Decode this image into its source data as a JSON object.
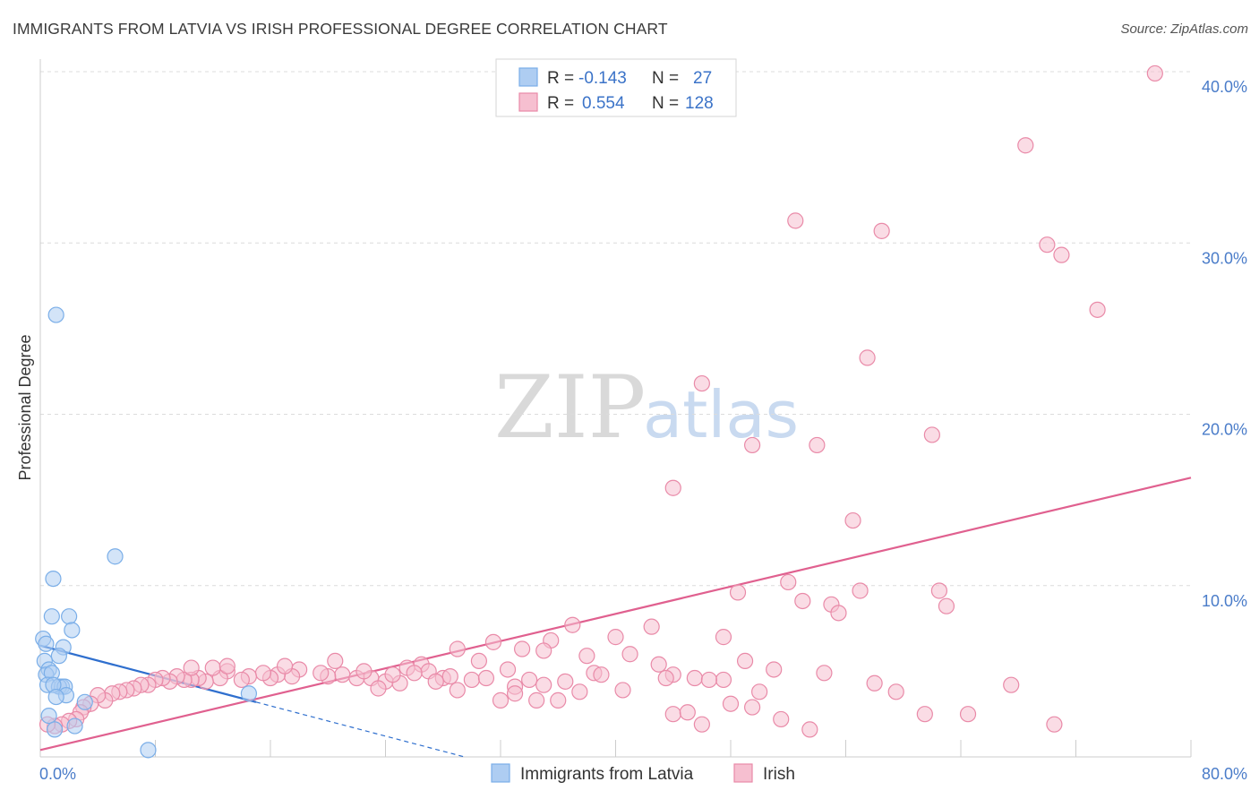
{
  "header": {
    "title": "IMMIGRANTS FROM LATVIA VS IRISH PROFESSIONAL DEGREE CORRELATION CHART",
    "source": "Source: ZipAtlas.com"
  },
  "watermark": {
    "zip": "ZIP",
    "atlas": "atlas"
  },
  "chart_data": {
    "type": "scatter",
    "title": "IMMIGRANTS FROM LATVIA VS IRISH PROFESSIONAL DEGREE CORRELATION CHART",
    "xlabel": "",
    "ylabel": "Professional Degree",
    "xlim": [
      0,
      80
    ],
    "ylim": [
      0,
      40
    ],
    "x_tick_labels": [
      "0.0%",
      "80.0%"
    ],
    "y_ticks": [
      10,
      20,
      30,
      40
    ],
    "y_tick_labels": [
      "10.0%",
      "20.0%",
      "30.0%",
      "40.0%"
    ],
    "grid": true,
    "legend": {
      "position": "top-center",
      "entries": [
        {
          "series": "Immigrants from Latvia",
          "r_label": "R =",
          "r_value": "-0.143",
          "n_label": "N =",
          "n_value": "27"
        },
        {
          "series": "Irish",
          "r_label": "R =",
          "r_value": "0.554",
          "n_label": "N =",
          "n_value": "128"
        }
      ]
    },
    "series": [
      {
        "name": "Immigrants from Latvia",
        "color": "#7aaee8",
        "fill": "#aecdf2",
        "trend_color": "#2f6fce",
        "trend": {
          "x0": 0,
          "y0": 6.5,
          "x1": 15,
          "y1": 3.2,
          "dashed_to_x": 29.5,
          "dashed_to_y": 0
        },
        "points": [
          [
            1.1,
            25.8
          ],
          [
            0.9,
            10.4
          ],
          [
            5.2,
            11.7
          ],
          [
            0.8,
            8.2
          ],
          [
            2.0,
            8.2
          ],
          [
            2.2,
            7.4
          ],
          [
            0.2,
            6.9
          ],
          [
            0.4,
            6.6
          ],
          [
            1.6,
            6.4
          ],
          [
            1.3,
            5.9
          ],
          [
            0.3,
            5.6
          ],
          [
            0.6,
            5.1
          ],
          [
            0.4,
            4.8
          ],
          [
            0.8,
            4.9
          ],
          [
            0.5,
            4.2
          ],
          [
            1.5,
            4.1
          ],
          [
            1.3,
            4.1
          ],
          [
            1.7,
            4.1
          ],
          [
            0.9,
            4.2
          ],
          [
            1.8,
            3.6
          ],
          [
            1.1,
            3.5
          ],
          [
            3.1,
            3.2
          ],
          [
            14.5,
            3.7
          ],
          [
            0.6,
            2.4
          ],
          [
            2.4,
            1.8
          ],
          [
            1.0,
            1.6
          ],
          [
            7.5,
            0.4
          ]
        ]
      },
      {
        "name": "Irish",
        "color": "#e98aa8",
        "fill": "#f6bfd0",
        "trend_color": "#e0608f",
        "trend": {
          "x0": 0,
          "y0": 0.4,
          "x1": 80,
          "y1": 16.3
        },
        "points": [
          [
            77.5,
            39.9
          ],
          [
            68.5,
            35.7
          ],
          [
            52.5,
            31.3
          ],
          [
            58.5,
            30.7
          ],
          [
            70.0,
            29.9
          ],
          [
            71.0,
            29.3
          ],
          [
            73.5,
            26.1
          ],
          [
            57.5,
            23.3
          ],
          [
            46.0,
            21.8
          ],
          [
            49.5,
            18.2
          ],
          [
            54.0,
            18.2
          ],
          [
            62.0,
            18.8
          ],
          [
            44.0,
            15.7
          ],
          [
            56.5,
            13.8
          ],
          [
            52.0,
            10.2
          ],
          [
            48.5,
            9.6
          ],
          [
            57.0,
            9.7
          ],
          [
            62.5,
            9.7
          ],
          [
            53.0,
            9.1
          ],
          [
            55.0,
            8.9
          ],
          [
            63.0,
            8.8
          ],
          [
            55.5,
            8.4
          ],
          [
            37.0,
            7.7
          ],
          [
            42.5,
            7.6
          ],
          [
            40.0,
            7.0
          ],
          [
            47.5,
            7.0
          ],
          [
            35.5,
            6.8
          ],
          [
            31.5,
            6.7
          ],
          [
            33.5,
            6.3
          ],
          [
            29.0,
            6.3
          ],
          [
            35.0,
            6.2
          ],
          [
            41.0,
            6.0
          ],
          [
            38.0,
            5.9
          ],
          [
            43.0,
            5.4
          ],
          [
            49.0,
            5.6
          ],
          [
            30.5,
            5.6
          ],
          [
            26.5,
            5.4
          ],
          [
            32.5,
            5.1
          ],
          [
            25.5,
            5.2
          ],
          [
            27.0,
            5.0
          ],
          [
            38.5,
            4.9
          ],
          [
            39.0,
            4.8
          ],
          [
            44.0,
            4.8
          ],
          [
            51.0,
            5.1
          ],
          [
            54.5,
            4.9
          ],
          [
            28.0,
            4.6
          ],
          [
            30.0,
            4.5
          ],
          [
            34.0,
            4.5
          ],
          [
            36.5,
            4.4
          ],
          [
            45.5,
            4.6
          ],
          [
            47.5,
            4.5
          ],
          [
            58.0,
            4.3
          ],
          [
            67.5,
            4.2
          ],
          [
            23.0,
            4.6
          ],
          [
            24.0,
            4.4
          ],
          [
            25.0,
            4.3
          ],
          [
            21.0,
            4.8
          ],
          [
            22.0,
            4.6
          ],
          [
            20.0,
            4.7
          ],
          [
            19.5,
            4.9
          ],
          [
            18.0,
            5.1
          ],
          [
            17.5,
            4.7
          ],
          [
            16.5,
            4.8
          ],
          [
            16.0,
            4.6
          ],
          [
            15.5,
            4.9
          ],
          [
            14.5,
            4.7
          ],
          [
            14.0,
            4.5
          ],
          [
            13.0,
            5.0
          ],
          [
            12.5,
            4.6
          ],
          [
            12.0,
            5.2
          ],
          [
            11.5,
            4.4
          ],
          [
            11.0,
            4.6
          ],
          [
            10.5,
            4.5
          ],
          [
            10.0,
            4.5
          ],
          [
            9.5,
            4.7
          ],
          [
            9.0,
            4.4
          ],
          [
            8.5,
            4.6
          ],
          [
            8.0,
            4.5
          ],
          [
            7.5,
            4.2
          ],
          [
            7.0,
            4.2
          ],
          [
            6.5,
            4.0
          ],
          [
            6.0,
            3.9
          ],
          [
            5.5,
            3.8
          ],
          [
            5.0,
            3.7
          ],
          [
            4.5,
            3.3
          ],
          [
            4.0,
            3.6
          ],
          [
            3.5,
            3.1
          ],
          [
            3.0,
            2.9
          ],
          [
            2.8,
            2.6
          ],
          [
            2.5,
            2.2
          ],
          [
            2.0,
            2.1
          ],
          [
            1.5,
            1.9
          ],
          [
            1.0,
            1.8
          ],
          [
            0.5,
            1.9
          ],
          [
            10.5,
            5.2
          ],
          [
            13.0,
            5.3
          ],
          [
            17.0,
            5.3
          ],
          [
            20.5,
            5.6
          ],
          [
            22.5,
            5.0
          ],
          [
            24.5,
            4.8
          ],
          [
            26.0,
            4.9
          ],
          [
            28.5,
            4.7
          ],
          [
            31.0,
            4.6
          ],
          [
            33.0,
            4.1
          ],
          [
            37.5,
            3.8
          ],
          [
            40.5,
            3.9
          ],
          [
            43.5,
            4.6
          ],
          [
            46.5,
            4.5
          ],
          [
            50.0,
            3.8
          ],
          [
            59.5,
            3.8
          ],
          [
            35.0,
            4.2
          ],
          [
            29.0,
            3.9
          ],
          [
            32.0,
            3.3
          ],
          [
            33.0,
            3.7
          ],
          [
            34.5,
            3.3
          ],
          [
            36.0,
            3.3
          ],
          [
            44.0,
            2.5
          ],
          [
            45.0,
            2.6
          ],
          [
            46.0,
            1.9
          ],
          [
            48.0,
            3.1
          ],
          [
            49.5,
            2.9
          ],
          [
            51.5,
            2.2
          ],
          [
            53.5,
            1.6
          ],
          [
            61.5,
            2.5
          ],
          [
            64.5,
            2.5
          ],
          [
            70.5,
            1.9
          ],
          [
            23.5,
            4.0
          ],
          [
            27.5,
            4.4
          ]
        ]
      }
    ]
  },
  "bottom_legend": {
    "items": [
      {
        "label": "Immigrants from Latvia"
      },
      {
        "label": "Irish"
      }
    ]
  },
  "colors": {
    "blue_accent": "#3b73c8",
    "pink_accent": "#e0608f",
    "grid": "#dcdcdc"
  }
}
